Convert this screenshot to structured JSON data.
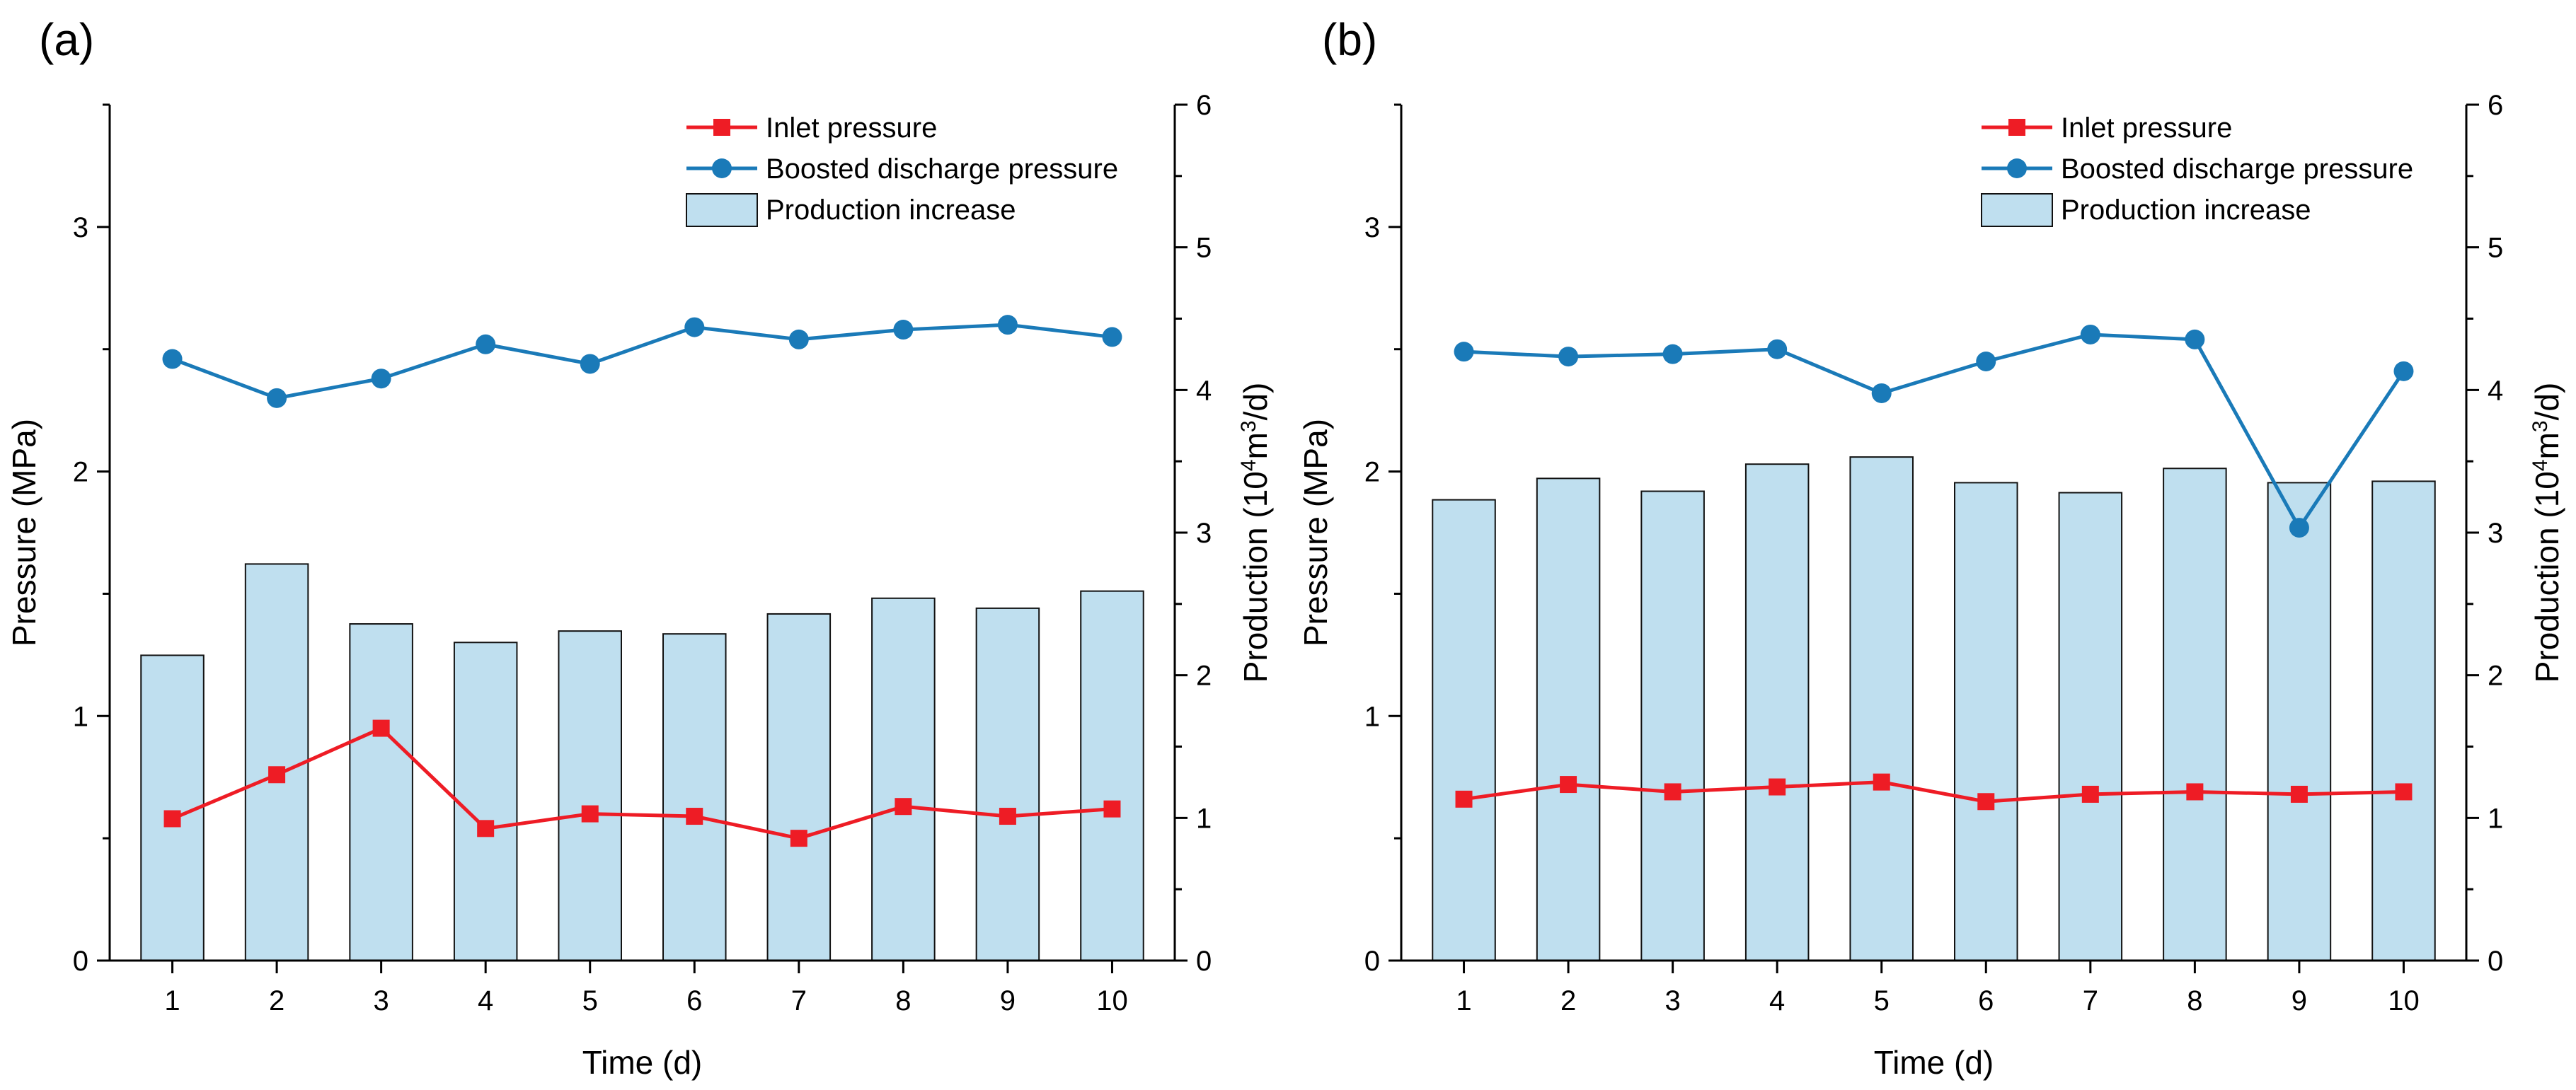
{
  "chart_data": [
    {
      "panel_label": "(a)",
      "type": "bar+line",
      "xlabel": "Time (d)",
      "ylabel_left": "Pressure (MPa)",
      "ylabel_right_parts": [
        "Production (10",
        "4",
        "m",
        "3",
        "/d)"
      ],
      "categories": [
        "1",
        "2",
        "3",
        "4",
        "5",
        "6",
        "7",
        "8",
        "9",
        "10"
      ],
      "ylim_left": [
        0,
        3.5
      ],
      "yticks_left": [
        0,
        1,
        2,
        3
      ],
      "ylim_right": [
        0,
        6
      ],
      "yticks_right": [
        0,
        1,
        2,
        3,
        4,
        5,
        6
      ],
      "legend_position": "top-right",
      "series": [
        {
          "name": "Inlet pressure",
          "kind": "line",
          "axis": "left",
          "marker": "square",
          "color": "#ee1c25",
          "values": [
            0.58,
            0.76,
            0.95,
            0.54,
            0.6,
            0.59,
            0.5,
            0.63,
            0.59,
            0.62
          ]
        },
        {
          "name": "Boosted discharge pressure",
          "kind": "line",
          "axis": "left",
          "marker": "circle",
          "color": "#1a7ab8",
          "values": [
            2.46,
            2.3,
            2.38,
            2.52,
            2.44,
            2.59,
            2.54,
            2.58,
            2.6,
            2.55
          ]
        },
        {
          "name": "Production increase",
          "kind": "bar",
          "axis": "right",
          "color": "#bfdfef",
          "values": [
            2.14,
            2.78,
            2.36,
            2.23,
            2.31,
            2.29,
            2.43,
            2.54,
            2.47,
            2.59
          ]
        }
      ]
    },
    {
      "panel_label": "(b)",
      "type": "bar+line",
      "xlabel": "Time (d)",
      "ylabel_left": "Pressure (MPa)",
      "ylabel_right_parts": [
        "Production (10",
        "4",
        "m",
        "3",
        "/d)"
      ],
      "categories": [
        "1",
        "2",
        "3",
        "4",
        "5",
        "6",
        "7",
        "8",
        "9",
        "10"
      ],
      "ylim_left": [
        0,
        3.5
      ],
      "yticks_left": [
        0,
        1,
        2,
        3
      ],
      "ylim_right": [
        0,
        6
      ],
      "yticks_right": [
        0,
        1,
        2,
        3,
        4,
        5,
        6
      ],
      "legend_position": "top-right",
      "series": [
        {
          "name": "Inlet pressure",
          "kind": "line",
          "axis": "left",
          "marker": "square",
          "color": "#ee1c25",
          "values": [
            0.66,
            0.72,
            0.69,
            0.71,
            0.73,
            0.65,
            0.68,
            0.69,
            0.68,
            0.69
          ]
        },
        {
          "name": "Boosted discharge pressure",
          "kind": "line",
          "axis": "left",
          "marker": "circle",
          "color": "#1a7ab8",
          "values": [
            2.49,
            2.47,
            2.48,
            2.5,
            2.32,
            2.45,
            2.56,
            2.54,
            1.77,
            2.41
          ]
        },
        {
          "name": "Production increase",
          "kind": "bar",
          "axis": "right",
          "color": "#bfdfef",
          "values": [
            3.23,
            3.38,
            3.29,
            3.48,
            3.53,
            3.35,
            3.28,
            3.45,
            3.35,
            3.36
          ]
        }
      ]
    }
  ]
}
